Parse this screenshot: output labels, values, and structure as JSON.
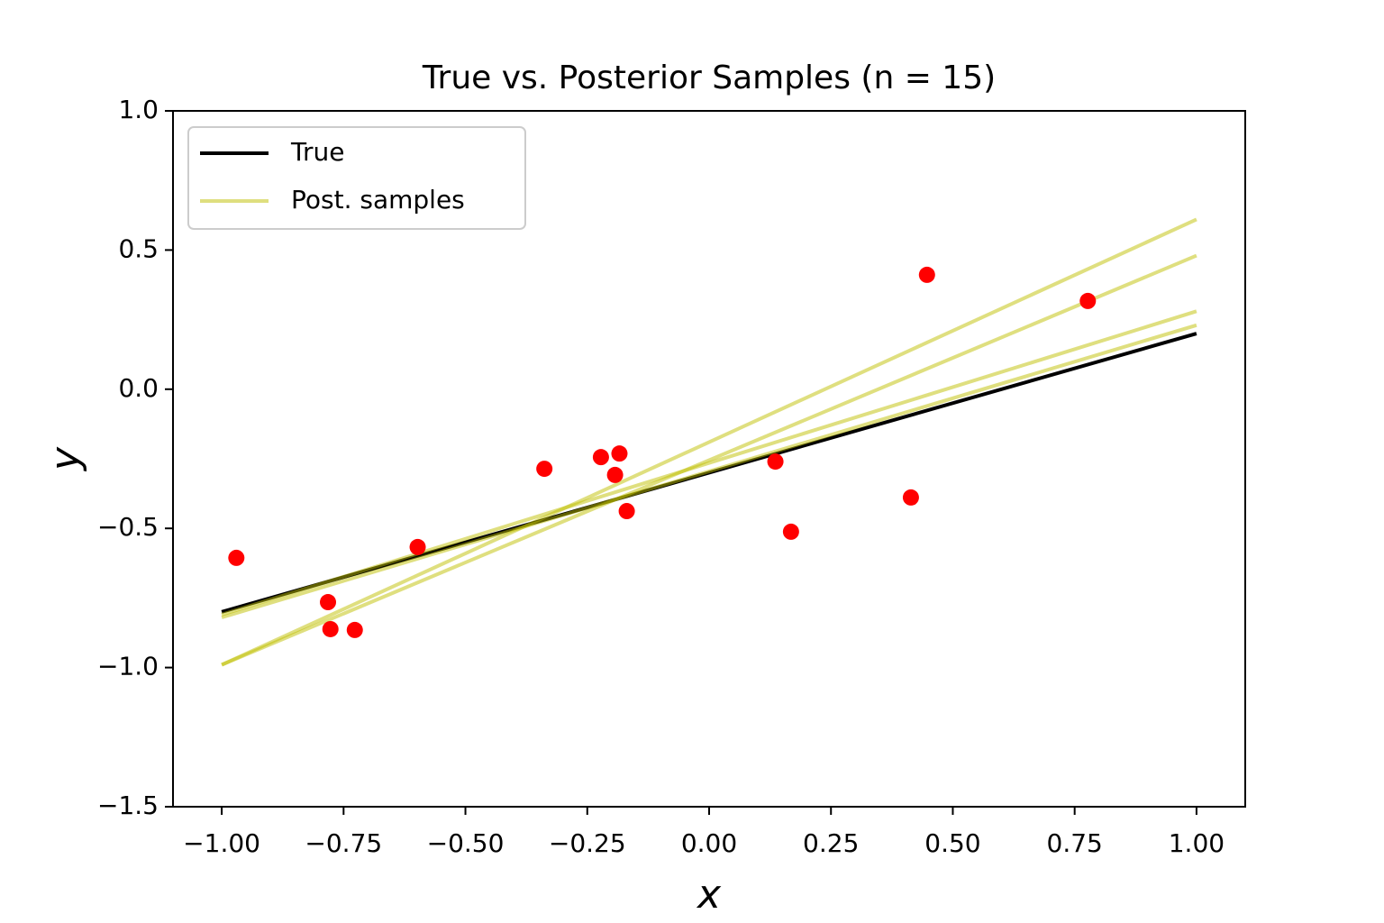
{
  "chart_data": {
    "type": "line-scatter",
    "title": "True vs. Posterior Samples (n = 15)",
    "x_label": "x",
    "y_label": "y",
    "xlim": [
      -1.1,
      1.1
    ],
    "ylim": [
      -1.5,
      1.0
    ],
    "xticks": [
      {
        "value": -1,
        "label": "−1.00"
      },
      {
        "value": -0.75,
        "label": "−0.75"
      },
      {
        "value": -0.5,
        "label": "−0.50"
      },
      {
        "value": -0.25,
        "label": "−0.25"
      },
      {
        "value": 0,
        "label": "0.00"
      },
      0.25,
      {
        "value": 0.5,
        "label": "0.50"
      },
      0.75,
      {
        "value": 1,
        "label": "1.00"
      }
    ],
    "yticks": [
      {
        "value": -1.5,
        "label": "−1.5"
      },
      {
        "value": -1,
        "label": "−1.0"
      },
      {
        "value": -0.5,
        "label": "−0.5"
      },
      {
        "value": 0,
        "label": "0.0"
      },
      0.5,
      {
        "value": 1,
        "label": "1.0"
      }
    ],
    "legend": "upper-left",
    "series": [
      {
        "name": "True",
        "color": "#000000",
        "alpha": 1,
        "x": [
          -1,
          1
        ],
        "lines": [
          [
            -0.8,
            0.2
          ]
        ]
      },
      {
        "name": "Post. samples",
        "color": "#bfbf00",
        "alpha": 0.5,
        "x": [
          -1,
          1
        ],
        "lines": [
          [
            -0.99,
            0.61
          ],
          [
            -0.99,
            0.48
          ],
          [
            -0.81,
            0.28
          ],
          [
            -0.82,
            0.23
          ]
        ]
      }
    ],
    "points": {
      "color": "#ff0000",
      "x": [
        -0.97,
        -0.782,
        -0.777,
        -0.727,
        -0.598,
        -0.338,
        -0.222,
        -0.184,
        -0.193,
        -0.169,
        0.136,
        0.168,
        0.414,
        0.447,
        0.777
      ],
      "y": [
        -0.606,
        -0.765,
        -0.862,
        -0.865,
        -0.567,
        -0.286,
        -0.244,
        -0.231,
        -0.308,
        -0.438,
        -0.26,
        -0.512,
        -0.389,
        0.411,
        0.317
      ]
    }
  }
}
